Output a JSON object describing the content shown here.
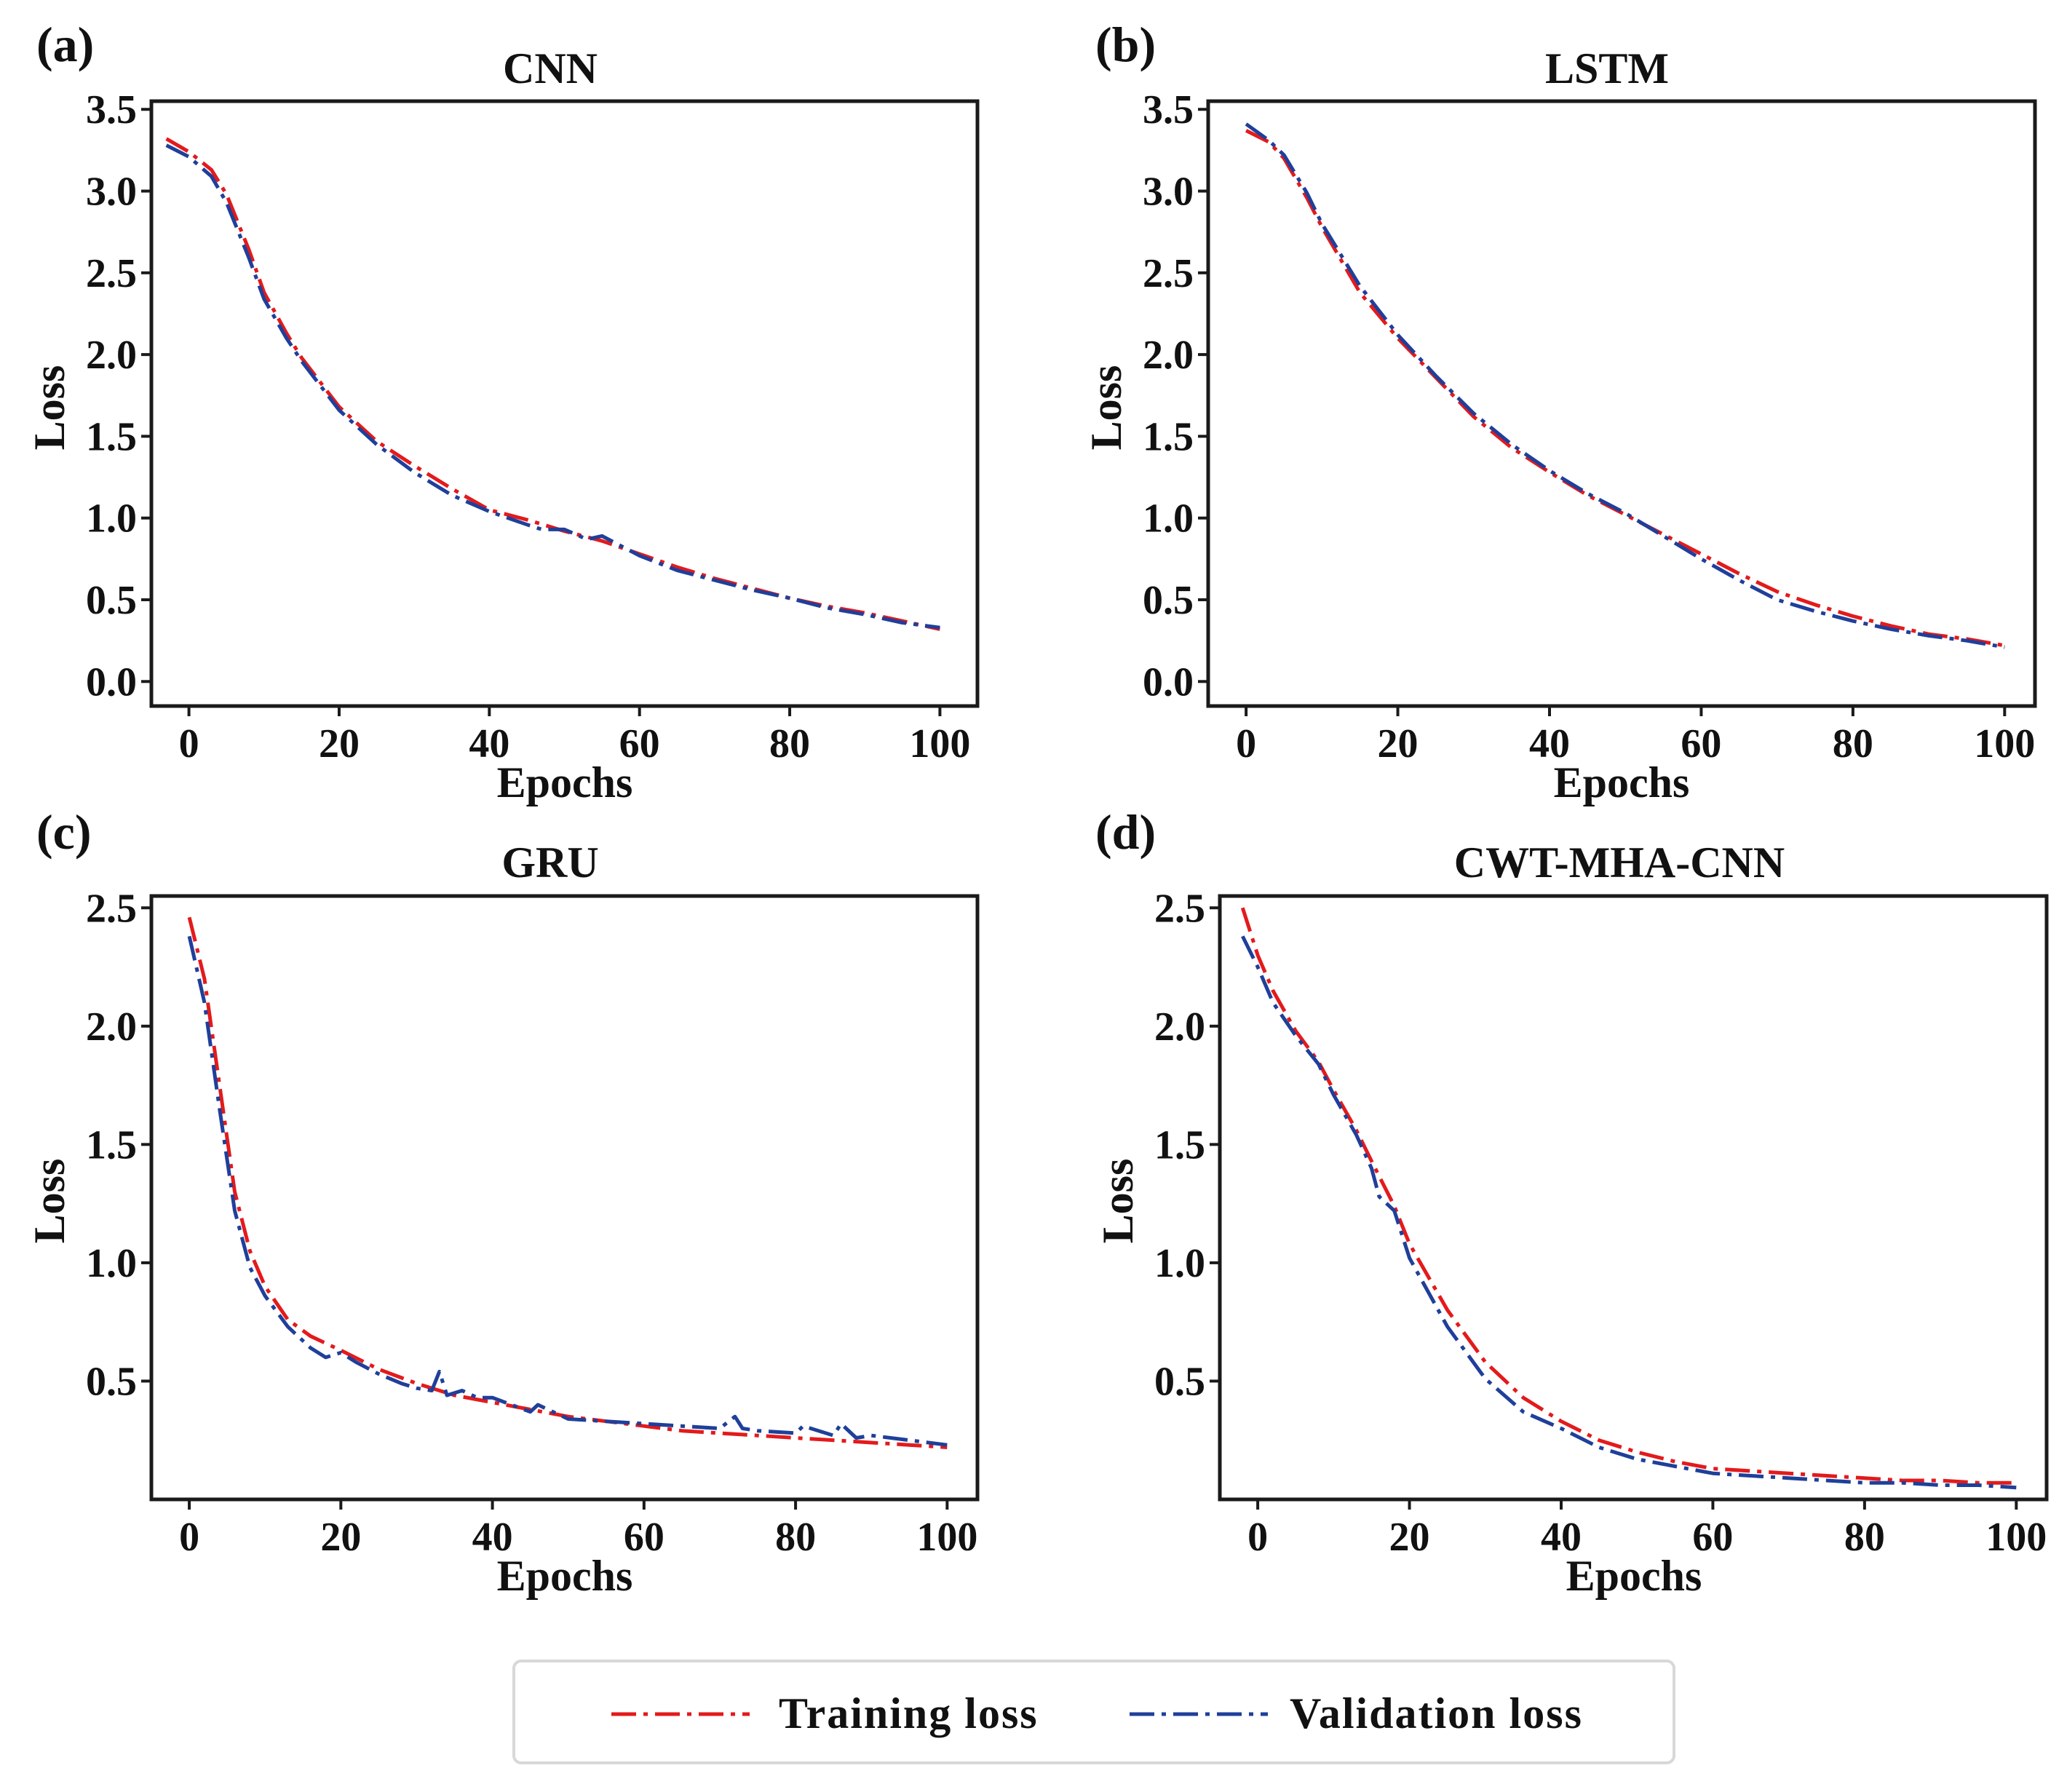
{
  "legend": {
    "training_label": "Training  loss",
    "validation_label": "Validation  loss",
    "training_color": "#e31a1c",
    "validation_color": "#1f3f9a"
  },
  "chart_data": [
    {
      "type": "line",
      "panel_label": "(a)",
      "title": "CNN",
      "xlabel": "Epochs",
      "ylabel": "Loss",
      "xlim": [
        -5,
        105
      ],
      "ylim": [
        -0.15,
        3.55
      ],
      "xticks": [
        0,
        20,
        40,
        60,
        80,
        100
      ],
      "yticks": [
        0.0,
        0.5,
        1.0,
        1.5,
        2.0,
        2.5,
        3.0,
        3.5
      ],
      "ytick_labels": [
        "0.0",
        "0.5",
        "1.0",
        "1.5",
        "2.0",
        "2.5",
        "3.0",
        "3.5"
      ],
      "grid": false,
      "series": [
        {
          "name": "Training loss",
          "color": "#e31a1c",
          "x": [
            -3,
            0,
            3,
            5,
            8,
            10,
            13,
            15,
            18,
            20,
            25,
            30,
            35,
            40,
            45,
            50,
            55,
            60,
            65,
            70,
            75,
            80,
            85,
            90,
            95,
            100
          ],
          "y": [
            3.32,
            3.24,
            3.13,
            2.98,
            2.64,
            2.38,
            2.13,
            1.98,
            1.8,
            1.68,
            1.47,
            1.32,
            1.18,
            1.05,
            0.99,
            0.92,
            0.86,
            0.78,
            0.7,
            0.63,
            0.57,
            0.51,
            0.46,
            0.42,
            0.37,
            0.32
          ]
        },
        {
          "name": "Validation loss",
          "color": "#1f3f9a",
          "x": [
            -3,
            0,
            3,
            5,
            8,
            10,
            13,
            15,
            18,
            20,
            25,
            30,
            35,
            40,
            45,
            47,
            50,
            53,
            55,
            60,
            65,
            70,
            75,
            80,
            85,
            90,
            95,
            100
          ],
          "y": [
            3.28,
            3.21,
            3.09,
            2.93,
            2.59,
            2.34,
            2.1,
            1.96,
            1.78,
            1.66,
            1.45,
            1.28,
            1.14,
            1.04,
            0.96,
            0.93,
            0.93,
            0.87,
            0.89,
            0.77,
            0.68,
            0.62,
            0.56,
            0.51,
            0.45,
            0.41,
            0.36,
            0.33
          ]
        }
      ]
    },
    {
      "type": "line",
      "panel_label": "(b)",
      "title": "LSTM",
      "xlabel": "Epochs",
      "ylabel": "Loss",
      "xlim": [
        -5,
        104
      ],
      "ylim": [
        -0.15,
        3.55
      ],
      "xticks": [
        0,
        20,
        40,
        60,
        80,
        100
      ],
      "yticks": [
        0.0,
        0.5,
        1.0,
        1.5,
        2.0,
        2.5,
        3.0,
        3.5
      ],
      "ytick_labels": [
        "0.0",
        "0.5",
        "1.0",
        "1.5",
        "2.0",
        "2.5",
        "3.0",
        "3.5"
      ],
      "grid": false,
      "series": [
        {
          "name": "Training loss",
          "color": "#e31a1c",
          "x": [
            0,
            3,
            5,
            8,
            10,
            15,
            20,
            25,
            30,
            35,
            40,
            45,
            50,
            55,
            60,
            65,
            70,
            75,
            80,
            85,
            90,
            95,
            100
          ],
          "y": [
            3.37,
            3.3,
            3.2,
            2.96,
            2.78,
            2.38,
            2.1,
            1.86,
            1.62,
            1.43,
            1.28,
            1.14,
            1.02,
            0.9,
            0.78,
            0.66,
            0.55,
            0.47,
            0.4,
            0.34,
            0.29,
            0.26,
            0.22
          ]
        },
        {
          "name": "Validation loss",
          "color": "#1f3f9a",
          "x": [
            0,
            3,
            5,
            8,
            10,
            15,
            20,
            25,
            30,
            35,
            40,
            45,
            50,
            55,
            60,
            65,
            70,
            75,
            80,
            85,
            90,
            95,
            100
          ],
          "y": [
            3.41,
            3.31,
            3.22,
            2.99,
            2.8,
            2.42,
            2.12,
            1.87,
            1.64,
            1.45,
            1.29,
            1.15,
            1.03,
            0.89,
            0.75,
            0.62,
            0.5,
            0.43,
            0.37,
            0.32,
            0.28,
            0.25,
            0.21
          ]
        }
      ]
    },
    {
      "type": "line",
      "panel_label": "(c)",
      "title": "GRU",
      "xlabel": "Epochs",
      "ylabel": "Loss",
      "xlim": [
        -5,
        104
      ],
      "ylim": [
        0.0,
        2.55
      ],
      "xticks": [
        0,
        20,
        40,
        60,
        80,
        100
      ],
      "yticks": [
        0.5,
        1.0,
        1.5,
        2.0,
        2.5
      ],
      "ytick_labels": [
        "0.5",
        "1.0",
        "1.5",
        "2.0",
        "2.5"
      ],
      "grid": false,
      "series": [
        {
          "name": "Training loss",
          "color": "#e31a1c",
          "x": [
            0,
            2,
            4,
            6,
            8,
            10,
            13,
            16,
            20,
            25,
            30,
            35,
            40,
            45,
            50,
            55,
            60,
            65,
            70,
            75,
            80,
            85,
            90,
            95,
            100
          ],
          "y": [
            2.46,
            2.2,
            1.75,
            1.3,
            1.05,
            0.9,
            0.76,
            0.69,
            0.63,
            0.55,
            0.49,
            0.44,
            0.41,
            0.38,
            0.35,
            0.33,
            0.31,
            0.29,
            0.28,
            0.27,
            0.26,
            0.25,
            0.24,
            0.23,
            0.22
          ]
        },
        {
          "name": "Validation loss",
          "color": "#1f3f9a",
          "x": [
            0,
            2,
            4,
            6,
            8,
            10,
            13,
            16,
            18,
            20,
            22,
            25,
            28,
            30,
            32,
            33,
            34,
            36,
            38,
            40,
            45,
            46,
            50,
            55,
            60,
            65,
            70,
            72,
            73,
            75,
            80,
            81,
            85,
            86,
            88,
            90,
            95,
            100
          ],
          "y": [
            2.38,
            2.1,
            1.65,
            1.22,
            0.98,
            0.86,
            0.73,
            0.64,
            0.6,
            0.62,
            0.58,
            0.53,
            0.49,
            0.47,
            0.46,
            0.54,
            0.44,
            0.46,
            0.43,
            0.43,
            0.37,
            0.4,
            0.34,
            0.33,
            0.32,
            0.31,
            0.3,
            0.35,
            0.3,
            0.29,
            0.28,
            0.31,
            0.27,
            0.32,
            0.26,
            0.27,
            0.25,
            0.23
          ]
        }
      ]
    },
    {
      "type": "line",
      "panel_label": "(d)",
      "title": "CWT-MHA-CNN",
      "xlabel": "Epochs",
      "ylabel": "Loss",
      "xlim": [
        -5,
        104
      ],
      "ylim": [
        0.0,
        2.55
      ],
      "xticks": [
        0,
        20,
        40,
        60,
        80,
        100
      ],
      "yticks": [
        0.5,
        1.0,
        1.5,
        2.0,
        2.5
      ],
      "ytick_labels": [
        "0.5",
        "1.0",
        "1.5",
        "2.0",
        "2.5"
      ],
      "grid": false,
      "series": [
        {
          "name": "Training loss",
          "color": "#e31a1c",
          "x": [
            -2,
            0,
            2,
            5,
            8,
            10,
            13,
            15,
            18,
            20,
            25,
            30,
            35,
            40,
            45,
            50,
            55,
            60,
            65,
            70,
            75,
            80,
            85,
            90,
            95,
            100
          ],
          "y": [
            2.5,
            2.3,
            2.15,
            1.98,
            1.85,
            1.73,
            1.56,
            1.43,
            1.24,
            1.08,
            0.8,
            0.58,
            0.43,
            0.33,
            0.25,
            0.2,
            0.16,
            0.13,
            0.12,
            0.11,
            0.1,
            0.09,
            0.08,
            0.08,
            0.07,
            0.07
          ]
        },
        {
          "name": "Validation loss",
          "color": "#1f3f9a",
          "x": [
            -2,
            0,
            2,
            5,
            8,
            10,
            13,
            15,
            16,
            18,
            20,
            25,
            30,
            35,
            40,
            45,
            50,
            55,
            60,
            65,
            70,
            75,
            80,
            85,
            90,
            95,
            100
          ],
          "y": [
            2.38,
            2.25,
            2.1,
            1.96,
            1.84,
            1.71,
            1.54,
            1.4,
            1.28,
            1.22,
            1.02,
            0.73,
            0.51,
            0.37,
            0.3,
            0.22,
            0.17,
            0.14,
            0.11,
            0.1,
            0.09,
            0.08,
            0.07,
            0.07,
            0.06,
            0.06,
            0.05
          ]
        }
      ]
    }
  ]
}
